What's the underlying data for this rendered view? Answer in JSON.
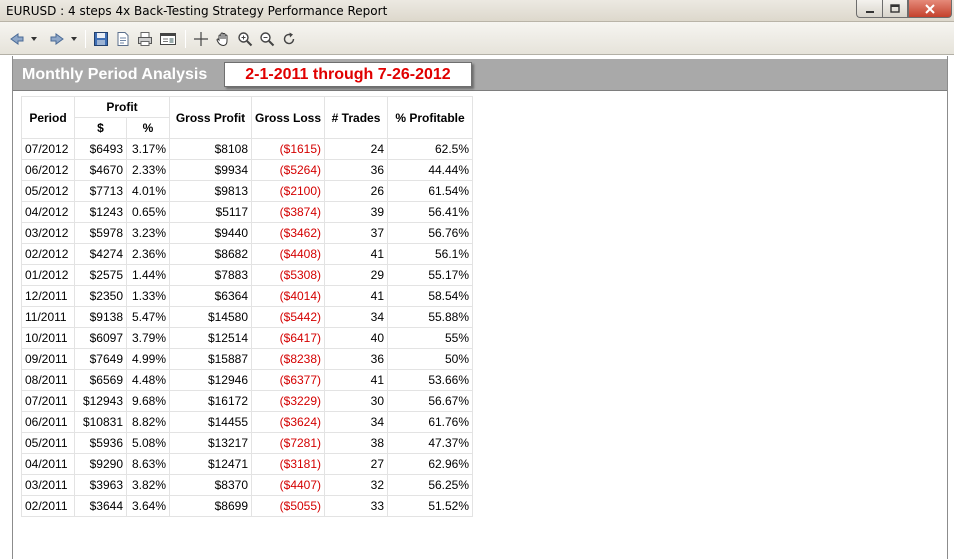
{
  "window": {
    "title": "EURUSD : 4 steps 4x Back-Testing Strategy Performance Report"
  },
  "toolbar": {
    "buttons": [
      {
        "name": "back-icon"
      },
      {
        "name": "back-dropdown-icon"
      },
      {
        "name": "forward-icon"
      },
      {
        "name": "forward-dropdown-icon"
      },
      {
        "name": "save-icon"
      },
      {
        "name": "page-setup-icon"
      },
      {
        "name": "print-icon"
      },
      {
        "name": "preview-icon"
      },
      {
        "name": "crosshair-icon"
      },
      {
        "name": "hand-icon"
      },
      {
        "name": "zoom-in-icon"
      },
      {
        "name": "zoom-out-icon"
      },
      {
        "name": "refresh-icon"
      }
    ]
  },
  "report": {
    "title": "Monthly Period Analysis",
    "date_range": "2-1-2011 through 7-26-2012",
    "columns": {
      "period": "Period",
      "profit": "Profit",
      "profit_dollar": "$",
      "profit_pct": "%",
      "gross_profit": "Gross Profit",
      "gross_loss": "Gross Loss",
      "trades": "# Trades",
      "pct_profitable": "% Profitable"
    },
    "rows": [
      {
        "period": "07/2012",
        "profit": "$6493",
        "pct": "3.17%",
        "gross_profit": "$8108",
        "gross_loss": "($1615)",
        "trades": "24",
        "profitable": "62.5%"
      },
      {
        "period": "06/2012",
        "profit": "$4670",
        "pct": "2.33%",
        "gross_profit": "$9934",
        "gross_loss": "($5264)",
        "trades": "36",
        "profitable": "44.44%"
      },
      {
        "period": "05/2012",
        "profit": "$7713",
        "pct": "4.01%",
        "gross_profit": "$9813",
        "gross_loss": "($2100)",
        "trades": "26",
        "profitable": "61.54%"
      },
      {
        "period": "04/2012",
        "profit": "$1243",
        "pct": "0.65%",
        "gross_profit": "$5117",
        "gross_loss": "($3874)",
        "trades": "39",
        "profitable": "56.41%"
      },
      {
        "period": "03/2012",
        "profit": "$5978",
        "pct": "3.23%",
        "gross_profit": "$9440",
        "gross_loss": "($3462)",
        "trades": "37",
        "profitable": "56.76%"
      },
      {
        "period": "02/2012",
        "profit": "$4274",
        "pct": "2.36%",
        "gross_profit": "$8682",
        "gross_loss": "($4408)",
        "trades": "41",
        "profitable": "56.1%"
      },
      {
        "period": "01/2012",
        "profit": "$2575",
        "pct": "1.44%",
        "gross_profit": "$7883",
        "gross_loss": "($5308)",
        "trades": "29",
        "profitable": "55.17%"
      },
      {
        "period": "12/2011",
        "profit": "$2350",
        "pct": "1.33%",
        "gross_profit": "$6364",
        "gross_loss": "($4014)",
        "trades": "41",
        "profitable": "58.54%"
      },
      {
        "period": "11/2011",
        "profit": "$9138",
        "pct": "5.47%",
        "gross_profit": "$14580",
        "gross_loss": "($5442)",
        "trades": "34",
        "profitable": "55.88%"
      },
      {
        "period": "10/2011",
        "profit": "$6097",
        "pct": "3.79%",
        "gross_profit": "$12514",
        "gross_loss": "($6417)",
        "trades": "40",
        "profitable": "55%"
      },
      {
        "period": "09/2011",
        "profit": "$7649",
        "pct": "4.99%",
        "gross_profit": "$15887",
        "gross_loss": "($8238)",
        "trades": "36",
        "profitable": "50%"
      },
      {
        "period": "08/2011",
        "profit": "$6569",
        "pct": "4.48%",
        "gross_profit": "$12946",
        "gross_loss": "($6377)",
        "trades": "41",
        "profitable": "53.66%"
      },
      {
        "period": "07/2011",
        "profit": "$12943",
        "pct": "9.68%",
        "gross_profit": "$16172",
        "gross_loss": "($3229)",
        "trades": "30",
        "profitable": "56.67%"
      },
      {
        "period": "06/2011",
        "profit": "$10831",
        "pct": "8.82%",
        "gross_profit": "$14455",
        "gross_loss": "($3624)",
        "trades": "34",
        "profitable": "61.76%"
      },
      {
        "period": "05/2011",
        "profit": "$5936",
        "pct": "5.08%",
        "gross_profit": "$13217",
        "gross_loss": "($7281)",
        "trades": "38",
        "profitable": "47.37%"
      },
      {
        "period": "04/2011",
        "profit": "$9290",
        "pct": "8.63%",
        "gross_profit": "$12471",
        "gross_loss": "($3181)",
        "trades": "27",
        "profitable": "62.96%"
      },
      {
        "period": "03/2011",
        "profit": "$3963",
        "pct": "3.82%",
        "gross_profit": "$8370",
        "gross_loss": "($4407)",
        "trades": "32",
        "profitable": "56.25%"
      },
      {
        "period": "02/2011",
        "profit": "$3644",
        "pct": "3.64%",
        "gross_profit": "$8699",
        "gross_loss": "($5055)",
        "trades": "33",
        "profitable": "51.52%"
      }
    ]
  },
  "colors": {
    "header_band": "#a9a9a9",
    "loss_text": "#d40000",
    "date_range_text": "#e00000"
  }
}
